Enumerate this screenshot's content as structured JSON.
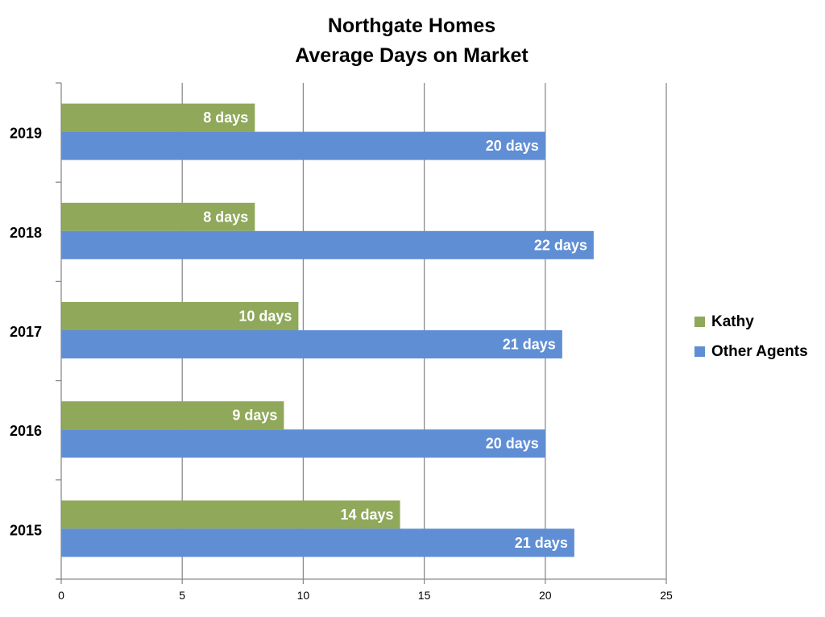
{
  "chart_data": {
    "type": "bar",
    "orientation": "horizontal",
    "title": [
      "Northgate Homes",
      "Average Days on Market"
    ],
    "categories": [
      "2015",
      "2016",
      "2017",
      "2018",
      "2019"
    ],
    "series": [
      {
        "name": "Kathy",
        "color": "#8FA85A",
        "values": [
          14,
          9.2,
          9.8,
          8,
          8
        ],
        "labels": [
          "14 days",
          "9 days",
          "10 days",
          "8 days",
          "8 days"
        ]
      },
      {
        "name": "Other Agents",
        "color": "#5F8ED4",
        "values": [
          21.2,
          20,
          20.7,
          22,
          20
        ],
        "labels": [
          "21 days",
          "20 days",
          "21 days",
          "22 days",
          "20 days"
        ]
      }
    ],
    "xlim": [
      0,
      25
    ],
    "xticks": [
      "0",
      "5",
      "10",
      "15",
      "20",
      "25"
    ],
    "xlabel": "",
    "ylabel": "",
    "grid": "vertical",
    "legend_position": "right"
  }
}
